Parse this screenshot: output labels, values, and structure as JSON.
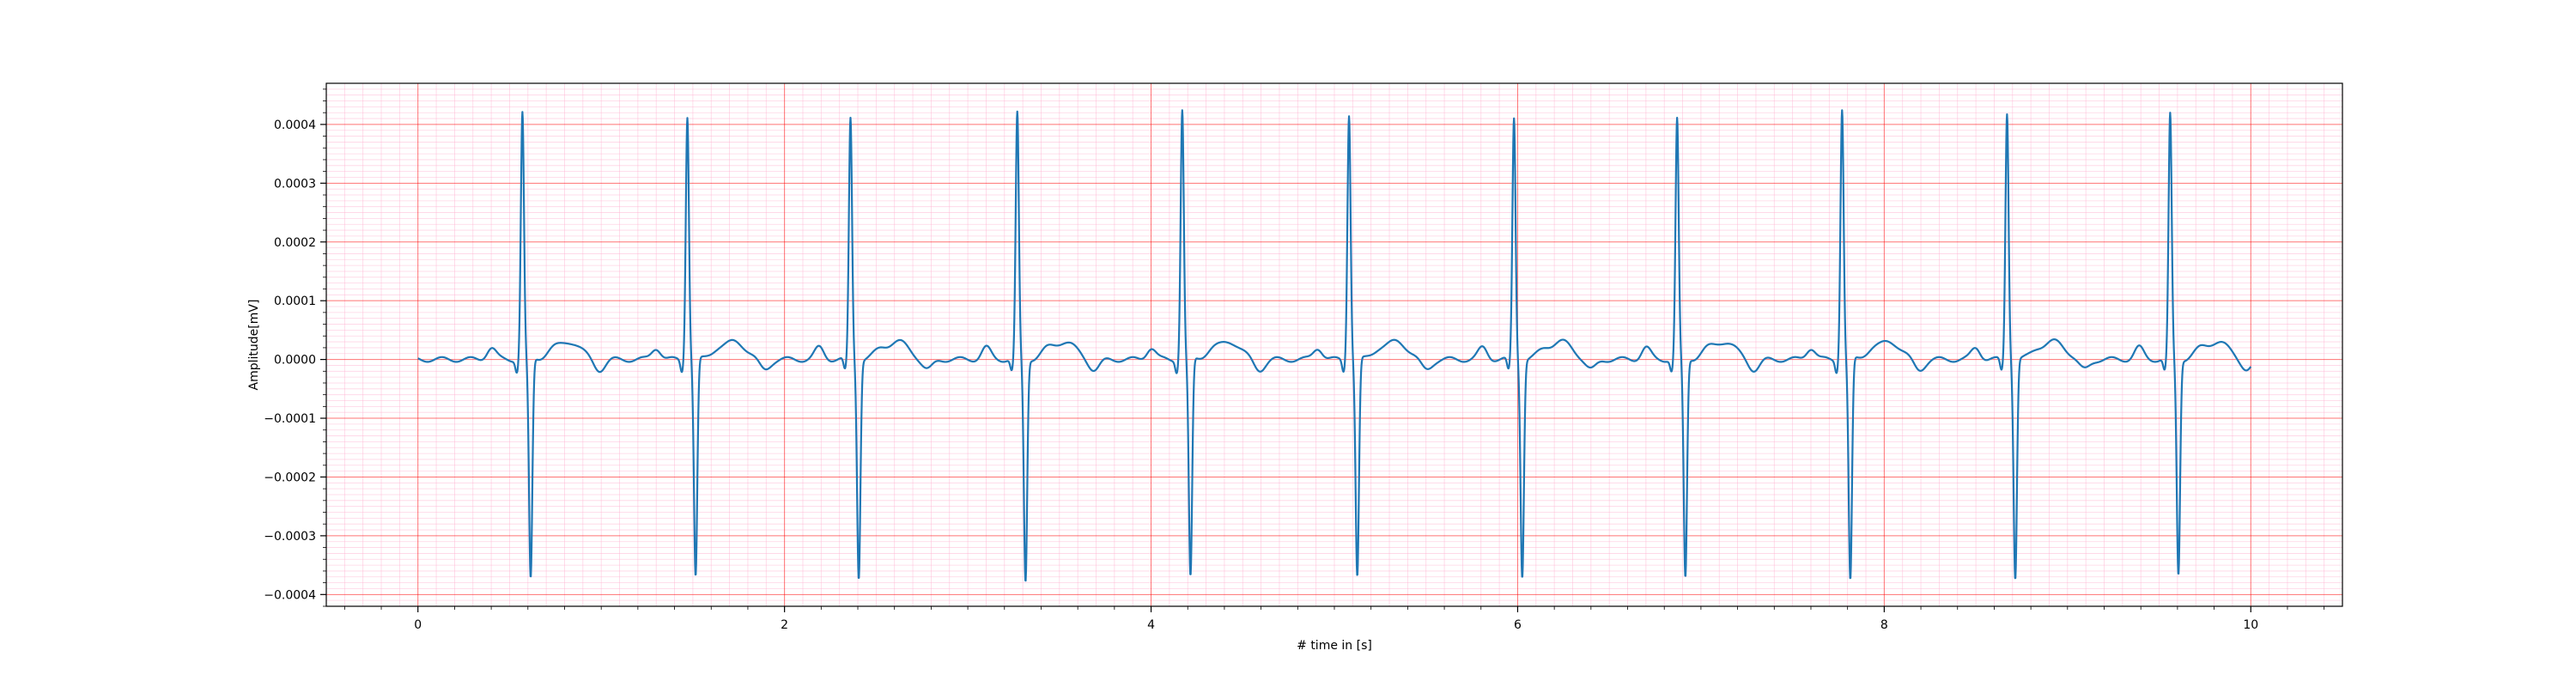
{
  "chart_data": {
    "type": "line",
    "xlabel": "# time in [s]",
    "ylabel": "Amplitude[mV]",
    "xlim": [
      -0.5,
      10.5
    ],
    "ylim": [
      -0.00042,
      0.00047
    ],
    "xticks": [
      0,
      2,
      4,
      6,
      8,
      10
    ],
    "xtick_labels": [
      "0",
      "2",
      "4",
      "6",
      "8",
      "10"
    ],
    "yticks": [
      -0.0004,
      -0.0003,
      -0.0002,
      -0.0001,
      0.0,
      0.0001,
      0.0002,
      0.0003,
      0.0004
    ],
    "ytick_labels": [
      "−0.0004",
      "−0.0003",
      "−0.0002",
      "−0.0001",
      "0.0000",
      "0.0001",
      "0.0002",
      "0.0003",
      "0.0004"
    ],
    "grid": {
      "major": true,
      "minor": true,
      "major_color": "#ff0000",
      "minor_color": "#ffb0d0"
    },
    "line_color": "#1f77b4",
    "r_peak_times": [
      0.57,
      1.47,
      2.36,
      3.27,
      4.17,
      5.08,
      5.98,
      6.87,
      7.77,
      8.67,
      9.56
    ],
    "r_peak_values": [
      0.00042,
      0.000415,
      0.00041,
      0.000418,
      0.000425,
      0.000418,
      0.00041,
      0.000408,
      0.000427,
      0.00042,
      0.000416
    ],
    "s_trough_values": [
      -0.000375,
      -0.00037,
      -0.00037,
      -0.000378,
      -0.000372,
      -0.00037,
      -0.000368,
      -0.000372,
      -0.000378,
      -0.000372,
      -0.000365
    ],
    "baseline": 0.0,
    "t_wave_amplitude": 3e-05,
    "p_wave_amplitude": 2e-05,
    "x_start": 0.0,
    "x_end": 10.0
  }
}
